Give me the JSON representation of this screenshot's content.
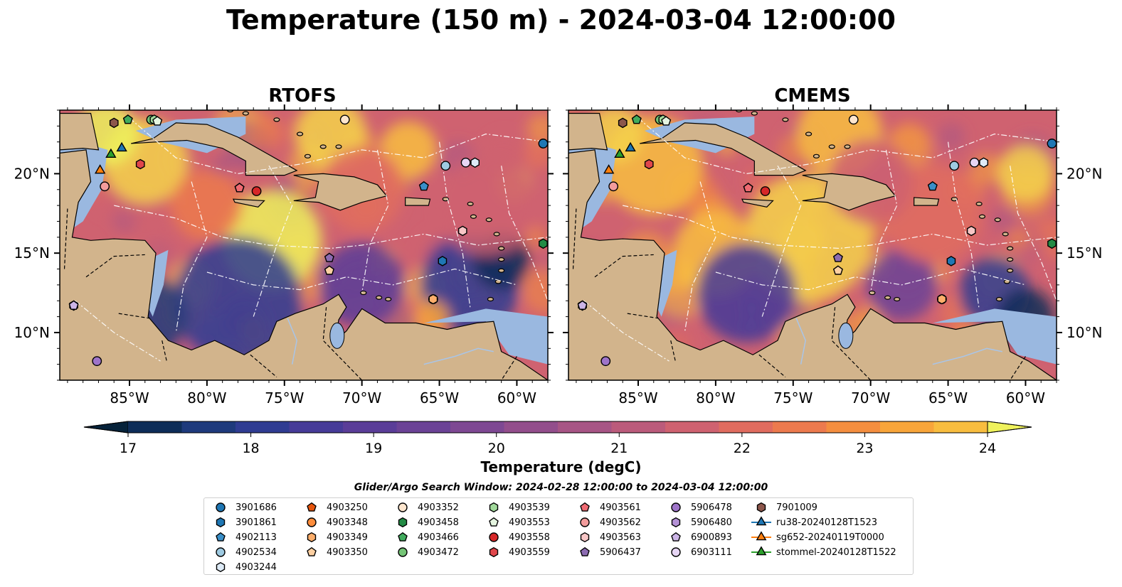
{
  "title": "Temperature (150 m) - 2024-03-04 12:00:00",
  "panels": [
    {
      "title": "RTOFS",
      "id": "rtofs"
    },
    {
      "title": "CMEMS",
      "id": "cmems"
    }
  ],
  "axes": {
    "lon_ticks": [
      "85°W",
      "80°W",
      "75°W",
      "70°W",
      "65°W",
      "60°W"
    ],
    "lon_values": [
      -85,
      -80,
      -75,
      -70,
      -65,
      -60
    ],
    "lat_ticks": [
      "20°N",
      "15°N",
      "10°N"
    ],
    "lat_values": [
      20,
      15,
      10
    ],
    "lon_range": [
      -89.5,
      -58.0
    ],
    "lat_range": [
      7.0,
      24.0
    ]
  },
  "colorbar": {
    "label": "Temperature (degC)",
    "ticks": [
      "17",
      "18",
      "19",
      "20",
      "21",
      "22",
      "23",
      "24"
    ],
    "range": [
      16.5,
      24.5
    ],
    "step": 0.5,
    "colors": [
      "#06223a",
      "#0e2d58",
      "#1e3a7c",
      "#2f3c92",
      "#463b98",
      "#5a3d98",
      "#6b4296",
      "#7e4893",
      "#934e8c",
      "#a75585",
      "#bb5b7b",
      "#cf6270",
      "#e06c5f",
      "#ec7a4e",
      "#f48e3f",
      "#f8a53a",
      "#f8bd3f",
      "#f5d24b",
      "#eff25c"
    ]
  },
  "search_window": "Glider/Argo Search Window: 2024-02-28 12:00:00 to 2024-03-04 12:00:00",
  "legend": [
    {
      "label": "3901686",
      "shape": "circle",
      "color": "#1f77b4"
    },
    {
      "label": "3901861",
      "shape": "hexagon",
      "color": "#1f77b4"
    },
    {
      "label": "4902113",
      "shape": "pentagon",
      "color": "#3a8fc8"
    },
    {
      "label": "4902534",
      "shape": "circle",
      "color": "#9ecae1"
    },
    {
      "label": "4903244",
      "shape": "hexagon",
      "color": "#deebf7"
    },
    {
      "label": "4903250",
      "shape": "pentagon",
      "color": "#e6550d"
    },
    {
      "label": "4903348",
      "shape": "circle",
      "color": "#fd8d3c"
    },
    {
      "label": "4903349",
      "shape": "hexagon",
      "color": "#fdae6b"
    },
    {
      "label": "4903350",
      "shape": "pentagon",
      "color": "#fdd0a2"
    },
    {
      "label": "4903352",
      "shape": "circle",
      "color": "#fee6ce"
    },
    {
      "label": "4903458",
      "shape": "hexagon",
      "color": "#238b45"
    },
    {
      "label": "4903466",
      "shape": "pentagon",
      "color": "#41ab5d"
    },
    {
      "label": "4903472",
      "shape": "circle",
      "color": "#74c476"
    },
    {
      "label": "4903539",
      "shape": "hexagon",
      "color": "#a1d99b"
    },
    {
      "label": "4903553",
      "shape": "pentagon",
      "color": "#e5f5e0"
    },
    {
      "label": "4903558",
      "shape": "circle",
      "color": "#d62728"
    },
    {
      "label": "4903559",
      "shape": "hexagon",
      "color": "#e0464b"
    },
    {
      "label": "4903561",
      "shape": "pentagon",
      "color": "#ef6a72"
    },
    {
      "label": "4903562",
      "shape": "circle",
      "color": "#f29c9c"
    },
    {
      "label": "4903563",
      "shape": "hexagon",
      "color": "#f7c6c6"
    },
    {
      "label": "5906437",
      "shape": "pentagon",
      "color": "#8c6bb1"
    },
    {
      "label": "5906478",
      "shape": "circle",
      "color": "#9e74c9"
    },
    {
      "label": "5906480",
      "shape": "hexagon",
      "color": "#b491d6"
    },
    {
      "label": "6900893",
      "shape": "pentagon",
      "color": "#cbb4e6"
    },
    {
      "label": "6903111",
      "shape": "circle",
      "color": "#e6d5f4"
    },
    {
      "label": "7901009",
      "shape": "hexagon",
      "color": "#8c564b"
    },
    {
      "label": "ru38-20240128T1523",
      "shape": "triangle-line",
      "color": "#1f77b4"
    },
    {
      "label": "sg652-20240119T0000",
      "shape": "triangle-line",
      "color": "#ff7f0e"
    },
    {
      "label": "stommel-20240128T1522",
      "shape": "triangle-line",
      "color": "#2ca02c"
    }
  ],
  "markers": [
    {
      "id": "3901686",
      "lon": -58.3,
      "lat": 21.9
    },
    {
      "id": "3901861",
      "lon": -64.8,
      "lat": 14.5
    },
    {
      "id": "4902113",
      "lon": -66.0,
      "lat": 19.2
    },
    {
      "id": "4902534",
      "lon": -64.6,
      "lat": 20.5
    },
    {
      "id": "4903244",
      "lon": -62.7,
      "lat": 20.7
    },
    {
      "id": "4903250",
      "lon": -77.9,
      "lat": 19.1
    },
    {
      "id": "4903348",
      "lon": -65.4,
      "lat": 12.1
    },
    {
      "id": "4903349",
      "lon": -65.4,
      "lat": 12.1
    },
    {
      "id": "4903350",
      "lon": -72.1,
      "lat": 13.9
    },
    {
      "id": "4903352",
      "lon": -71.1,
      "lat": 23.4
    },
    {
      "id": "4903458",
      "lon": -58.3,
      "lat": 15.6
    },
    {
      "id": "4903466",
      "lon": -85.1,
      "lat": 23.4
    },
    {
      "id": "4903472",
      "lon": -83.6,
      "lat": 23.4
    },
    {
      "id": "4903539",
      "lon": -83.4,
      "lat": 23.4
    },
    {
      "id": "4903553",
      "lon": -83.2,
      "lat": 23.3
    },
    {
      "id": "4903558",
      "lon": -76.8,
      "lat": 18.9
    },
    {
      "id": "4903559",
      "lon": -84.3,
      "lat": 20.6
    },
    {
      "id": "4903561",
      "lon": -77.9,
      "lat": 19.1
    },
    {
      "id": "4903562",
      "lon": -86.6,
      "lat": 19.2
    },
    {
      "id": "4903563",
      "lon": -63.5,
      "lat": 16.4
    },
    {
      "id": "5906437",
      "lon": -72.1,
      "lat": 14.7
    },
    {
      "id": "5906478",
      "lon": -87.1,
      "lat": 8.2
    },
    {
      "id": "5906480",
      "lon": -88.6,
      "lat": 11.7
    },
    {
      "id": "6900893",
      "lon": -88.6,
      "lat": 11.7
    },
    {
      "id": "6903111",
      "lon": -63.3,
      "lat": 20.7
    },
    {
      "id": "7901009",
      "lon": -86.0,
      "lat": 23.2
    },
    {
      "id": "ru38-20240128T1523",
      "lon": -85.5,
      "lat": 21.6
    },
    {
      "id": "sg652-20240119T0000",
      "lon": -86.9,
      "lat": 20.2
    },
    {
      "id": "stommel-20240128T1522",
      "lon": -86.2,
      "lat": 21.2
    }
  ]
}
